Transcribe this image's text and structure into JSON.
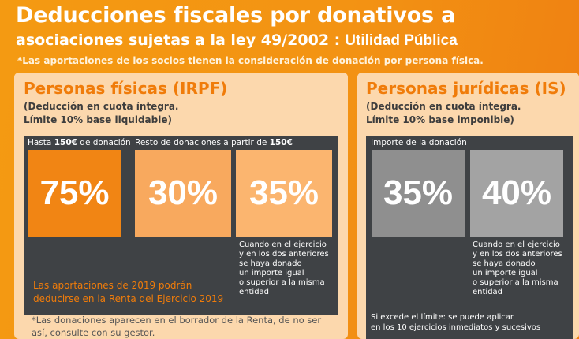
{
  "header": {
    "title_line1": "Deducciones fiscales por donativos a",
    "title_line2": "asociaciones sujetas a la ley 49/2002 :",
    "title_highlight": "Utilidad Pública",
    "note": "*Las aportaciones de los socios tienen la consideración de donación por persona física."
  },
  "irpf": {
    "title": "Personas físicas (IRPF)",
    "subtitle_line1": "(Deducción en cuota íntegra.",
    "subtitle_line2": "Límite 10% base liquidable)",
    "caption1_prefix": "Hasta ",
    "caption1_amount": "150€",
    "caption1_suffix": " de donación",
    "caption2_prefix": "Resto de donaciones a partir de ",
    "caption2_amount": "150€",
    "tile1": "75%",
    "tile2": "30%",
    "tile3": "35%",
    "desc": [
      "Cuando en el ejercicio",
      "y en los dos anteriores",
      "se haya donado",
      "un importe igual",
      "o superior a la misma",
      "entidad"
    ],
    "orange_note_line1": "Las aportaciones de 2019 podrán",
    "orange_note_line2": "deducirse en la Renta del Ejercicio 2019",
    "footnote_line1": "*Las donaciones aparecen en el borrador de la Renta, de no ser",
    "footnote_line2": "así, consulte con su gestor."
  },
  "is": {
    "title": "Personas jurídicas (IS)",
    "subtitle_line1": "(Deducción en cuota íntegra.",
    "subtitle_line2": "Límite 10% base imponible)",
    "caption": "Importe de la donación",
    "tile1": "35%",
    "tile2": "40%",
    "desc": [
      "Cuando en el ejercicio",
      "y en los dos anteriores",
      "se haya donado",
      "un importe igual",
      "o superior a la misma",
      "entidad"
    ],
    "footnote_line1": "Si excede el límite: se puede aplicar",
    "footnote_line2": "en los 10 ejercicios inmediatos y sucesivos"
  }
}
